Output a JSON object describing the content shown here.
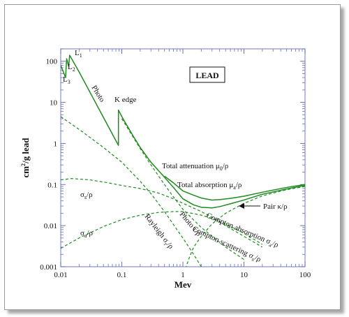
{
  "chart_data": {
    "type": "line",
    "title": "LEAD",
    "xlabel": "Mev",
    "ylabel_main": "cm",
    "ylabel_sup": "2",
    "ylabel_tail": "/g lead",
    "x_scale": "log",
    "y_scale": "log",
    "xlim": [
      0.01,
      100
    ],
    "ylim": [
      0.001,
      200
    ],
    "x_ticks": [
      {
        "value": 0.01,
        "label": "0.01"
      },
      {
        "value": 0.1,
        "label": "0.1"
      },
      {
        "value": 1,
        "label": "1"
      },
      {
        "value": 10,
        "label": "10"
      },
      {
        "value": 100,
        "label": "100"
      }
    ],
    "y_ticks": [
      {
        "value": 0.001,
        "label": "0.001"
      },
      {
        "value": 0.01,
        "label": "0.01"
      },
      {
        "value": 0.1,
        "label": "0.1"
      },
      {
        "value": 1,
        "label": "1"
      },
      {
        "value": 10,
        "label": "10"
      },
      {
        "value": 100,
        "label": "100"
      }
    ],
    "grid": false,
    "series": [
      {
        "key": "photo",
        "style": "solid",
        "color": "#1f8a1f",
        "points": [
          [
            0.01,
            80
          ],
          [
            0.012,
            40
          ],
          [
            0.0125,
            115
          ],
          [
            0.0135,
            75
          ],
          [
            0.014,
            140
          ],
          [
            0.02,
            55
          ],
          [
            0.04,
            8
          ],
          [
            0.088,
            0.9
          ],
          [
            0.0881,
            6.5
          ],
          [
            0.1,
            4.5
          ],
          [
            0.15,
            1.6
          ],
          [
            0.2,
            0.8
          ],
          [
            0.3,
            0.35
          ],
          [
            0.5,
            0.15
          ]
        ]
      },
      {
        "key": "total-attenuation",
        "style": "solid",
        "color": "#1f8a1f",
        "points": [
          [
            0.5,
            0.16
          ],
          [
            0.7,
            0.11
          ],
          [
            1,
            0.07
          ],
          [
            1.5,
            0.055
          ],
          [
            2,
            0.047
          ],
          [
            3,
            0.042
          ],
          [
            4,
            0.043
          ],
          [
            6,
            0.046
          ],
          [
            10,
            0.052
          ],
          [
            20,
            0.065
          ],
          [
            50,
            0.085
          ],
          [
            100,
            0.1
          ]
        ]
      },
      {
        "key": "total-absorption",
        "style": "solid",
        "color": "#1f8a1f",
        "points": [
          [
            0.5,
            0.15
          ],
          [
            0.7,
            0.085
          ],
          [
            1,
            0.045
          ],
          [
            1.5,
            0.032
          ],
          [
            2,
            0.028
          ],
          [
            3,
            0.027
          ],
          [
            4,
            0.029
          ],
          [
            6,
            0.034
          ],
          [
            10,
            0.042
          ],
          [
            20,
            0.058
          ],
          [
            50,
            0.078
          ],
          [
            100,
            0.095
          ]
        ]
      },
      {
        "key": "photo-tau",
        "style": "dashed",
        "color": "#1f8a1f",
        "points": [
          [
            0.1,
            4
          ],
          [
            0.15,
            1.5
          ],
          [
            0.2,
            0.75
          ],
          [
            0.3,
            0.3
          ],
          [
            0.5,
            0.1
          ],
          [
            0.7,
            0.05
          ],
          [
            1,
            0.025
          ],
          [
            2,
            0.009
          ],
          [
            5,
            0.003
          ],
          [
            10,
            0.0015
          ]
        ]
      },
      {
        "key": "sigma-s",
        "style": "dashed",
        "color": "#1f8a1f",
        "points": [
          [
            0.01,
            0.13
          ],
          [
            0.015,
            0.14
          ],
          [
            0.03,
            0.13
          ],
          [
            0.06,
            0.11
          ],
          [
            0.1,
            0.095
          ],
          [
            0.2,
            0.08
          ],
          [
            0.4,
            0.062
          ],
          [
            0.7,
            0.045
          ],
          [
            1,
            0.035
          ],
          [
            2,
            0.022
          ],
          [
            3,
            0.016
          ],
          [
            5,
            0.01
          ],
          [
            10,
            0.0055
          ],
          [
            20,
            0.003
          ]
        ]
      },
      {
        "key": "sigma-a",
        "style": "dashed",
        "color": "#1f8a1f",
        "points": [
          [
            0.01,
            0.0028
          ],
          [
            0.02,
            0.005
          ],
          [
            0.05,
            0.0095
          ],
          [
            0.1,
            0.014
          ],
          [
            0.2,
            0.018
          ],
          [
            0.4,
            0.021
          ],
          [
            0.7,
            0.022
          ],
          [
            1,
            0.022
          ],
          [
            2,
            0.018
          ],
          [
            3,
            0.015
          ],
          [
            5,
            0.011
          ],
          [
            10,
            0.0065
          ],
          [
            20,
            0.0035
          ]
        ]
      },
      {
        "key": "rayleigh",
        "style": "dashed",
        "color": "#1f8a1f",
        "points": [
          [
            0.01,
            4.5
          ],
          [
            0.02,
            2.2
          ],
          [
            0.05,
            0.8
          ],
          [
            0.1,
            0.35
          ],
          [
            0.2,
            0.12
          ],
          [
            0.3,
            0.06
          ],
          [
            0.5,
            0.022
          ],
          [
            0.8,
            0.008
          ],
          [
            1,
            0.005
          ],
          [
            1.5,
            0.002
          ],
          [
            2,
            0.001
          ]
        ]
      },
      {
        "key": "pair",
        "style": "dashed",
        "color": "#1f8a1f",
        "points": [
          [
            1.1,
            0.0009
          ],
          [
            1.3,
            0.0018
          ],
          [
            1.5,
            0.003
          ],
          [
            2,
            0.0055
          ],
          [
            3,
            0.011
          ],
          [
            5,
            0.02
          ],
          [
            10,
            0.035
          ],
          [
            20,
            0.053
          ],
          [
            50,
            0.075
          ],
          [
            100,
            0.09
          ]
        ]
      }
    ],
    "annotations": {
      "lead_box": "LEAD",
      "photo": "Photo",
      "k_edge": "K edge",
      "l1_main": "L",
      "l1_sub": "1",
      "l2_main": "L",
      "l2_sub": "2",
      "l3_main": "L",
      "l3_sub": "3",
      "total_atten": "Total attenuation μ",
      "total_atten_sub": "0",
      "total_atten_tail": "/ρ",
      "total_abs": "Total absorption μ",
      "total_abs_sub": "a",
      "total_abs_tail": "/ρ",
      "pair": "Pair κ/ρ",
      "sigma_s_main": "σ",
      "sigma_s_sub": "s",
      "sigma_s_tail": "/ρ",
      "sigma_a_main": "σ",
      "sigma_a_sub": "a",
      "sigma_a_tail": "/ρ",
      "rayleigh_main": "Rayleigh σ",
      "rayleigh_sub": "r",
      "rayleigh_tail": "/ρ",
      "photo_tau": "Photo τ/ρ",
      "compton_abs_main": "Compton absorption σ",
      "compton_abs_sub": "a",
      "compton_abs_tail": "/ρ",
      "compton_scat_main": "Compton scattering σ",
      "compton_scat_sub": "s",
      "compton_scat_tail": "/ρ"
    }
  }
}
